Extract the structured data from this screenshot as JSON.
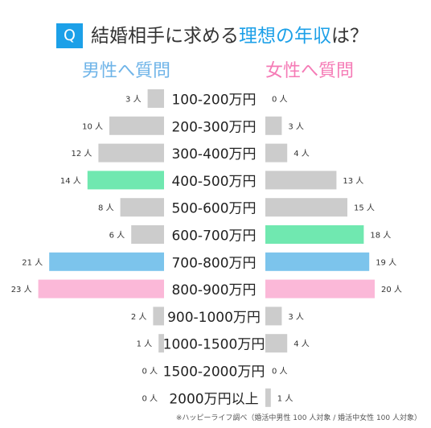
{
  "title": {
    "badge": "Q",
    "text_pre": "結婚相手に求める",
    "text_highlight": "理想の年収",
    "text_post": "は？"
  },
  "colors": {
    "male_title": "#6fb4e8",
    "female_title": "#f57bb6",
    "gray": "#cccccc",
    "green": "#70e8b0",
    "blue": "#7cc4ec",
    "pink": "#fbb8d8",
    "title_badge": "#1ca0e8"
  },
  "footnote": "※ハッピーライフ調べ（婚活中男性 100 人対象 / 婚活中女性 100 人対象）",
  "chart_data": {
    "type": "bar",
    "layout": "butterfly",
    "unit": "人",
    "categories": [
      "100-200万円",
      "200-300万円",
      "300-400万円",
      "400-500万円",
      "500-600万円",
      "600-700万円",
      "700-800万円",
      "800-900万円",
      "900-1000万円",
      "1000-1500万円",
      "1500-2000万円",
      "2000万円以上"
    ],
    "series": [
      {
        "name": "男性へ質問",
        "values": [
          3,
          10,
          12,
          14,
          8,
          6,
          21,
          23,
          2,
          1,
          0,
          0
        ],
        "colors": [
          "gray",
          "gray",
          "gray",
          "green",
          "gray",
          "gray",
          "blue",
          "pink",
          "gray",
          "gray",
          "gray",
          "gray"
        ]
      },
      {
        "name": "女性へ質問",
        "values": [
          0,
          3,
          4,
          13,
          15,
          18,
          19,
          20,
          3,
          4,
          0,
          1
        ],
        "colors": [
          "gray",
          "gray",
          "gray",
          "gray",
          "gray",
          "green",
          "blue",
          "pink",
          "gray",
          "gray",
          "gray",
          "gray"
        ]
      }
    ]
  }
}
